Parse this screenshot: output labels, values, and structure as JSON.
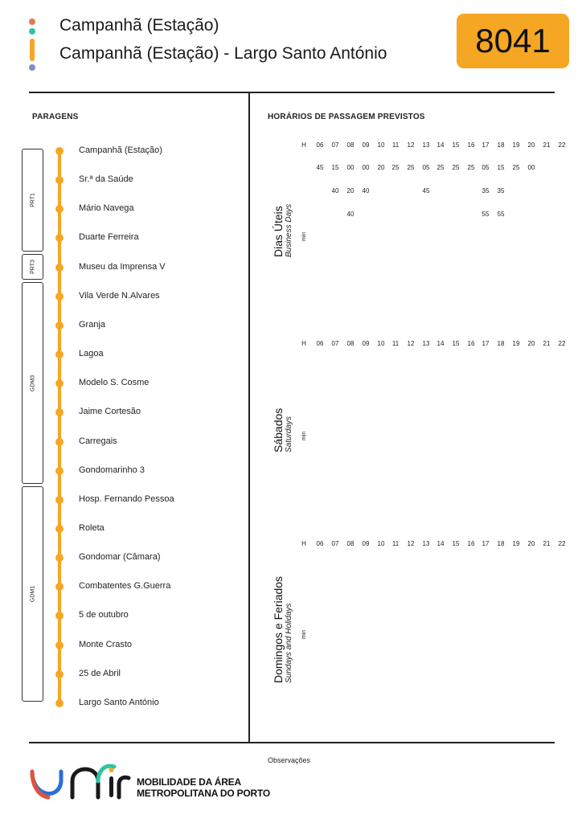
{
  "header": {
    "title": "Campanhã (Estação)",
    "subtitle": "Campanhã (Estação) - Largo Santo António",
    "route_number": "8041",
    "dot_colors": [
      "#e07b53",
      "#2dc5a3",
      "#f5a623",
      "#7b8fc7"
    ]
  },
  "stops": {
    "label": "PARAGENS",
    "items": [
      "Campanhã (Estação)",
      "Sr.ª da Saúde",
      "Mário Navega",
      "Duarte Ferreira",
      "Museu da Imprensa V",
      "Vila Verde N.Alvares",
      "Granja",
      "Lagoa",
      "Modelo S. Cosme",
      "Jaime Cortesão",
      "Carregais",
      "Gondomarinho 3",
      "Hosp. Fernando Pessoa",
      "Roleta",
      "Gondomar (Câmara)",
      "Combatentes G.Guerra",
      "5 de outubro",
      "Monte Crasto",
      "25 de Abril",
      "Largo Santo António"
    ],
    "zones": [
      "PRT1",
      "PRT3",
      "GDM3",
      "GDM1"
    ]
  },
  "schedule": {
    "label": "HORÁRIOS DE PASSAGEM PREVISTOS",
    "hour_label": "H",
    "min_label": "min",
    "hours": [
      "06",
      "07",
      "08",
      "09",
      "10",
      "11",
      "12",
      "13",
      "14",
      "15",
      "16",
      "17",
      "18",
      "19",
      "20",
      "21",
      "22"
    ],
    "weekday": {
      "title": "Dias Úteis",
      "subtitle": "Business Days",
      "minutes": [
        [
          "45",
          "15",
          "00",
          "00",
          "20",
          "25",
          "25",
          "05",
          "25",
          "25",
          "25",
          "05",
          "15",
          "25",
          "00",
          "",
          ""
        ],
        [
          "",
          "40",
          "20",
          "40",
          "",
          "",
          "",
          "45",
          "",
          "",
          "",
          "35",
          "35",
          "",
          "",
          "",
          ""
        ],
        [
          "",
          "",
          "40",
          "",
          "",
          "",
          "",
          "",
          "",
          "",
          "",
          "55",
          "55",
          "",
          "",
          "",
          ""
        ]
      ]
    },
    "saturday": {
      "title": "Sábados",
      "subtitle": "Saturdays"
    },
    "sunday": {
      "title": "Domingos e Feriados",
      "subtitle": "Sundays and Holidays"
    }
  },
  "footer": {
    "observations_label": "Observações",
    "logo_line1": "MOBILIDADE DA ÁREA",
    "logo_line2": "METROPOLITANA DO PORTO"
  },
  "colors": {
    "accent": "#f5a623",
    "logo_blue": "#2b6fd6",
    "logo_teal": "#2dc5a3",
    "logo_orange": "#f5a623",
    "logo_red": "#e0533b"
  }
}
